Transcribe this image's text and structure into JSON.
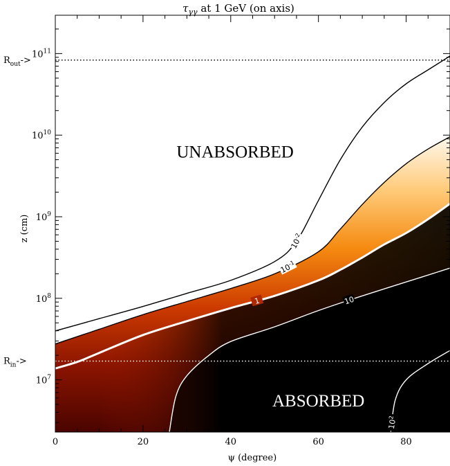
{
  "chart_data": {
    "type": "contour",
    "title": "τγγ at 1 GeV (on axis)",
    "xlabel": "ψ (degree)",
    "ylabel": "z (cm)",
    "xlim": [
      0,
      90
    ],
    "ylim_log10": [
      6.36,
      11.47
    ],
    "y_scale": "log",
    "x_ticks": [
      0,
      20,
      40,
      60,
      80
    ],
    "y_ticks": [
      {
        "exp": 7,
        "label": "10",
        "sup": "7"
      },
      {
        "exp": 8,
        "label": "10",
        "sup": "8"
      },
      {
        "exp": 9,
        "label": "10",
        "sup": "9"
      },
      {
        "exp": 10,
        "label": "10",
        "sup": "10"
      },
      {
        "exp": 11,
        "label": "10",
        "sup": "11"
      }
    ],
    "reference_lines": [
      {
        "name": "R_out",
        "label": "R",
        "sub": "out",
        "suffix": "->",
        "log10z": 10.92
      },
      {
        "name": "R_in",
        "label": "R",
        "sub": "in",
        "suffix": "->",
        "log10z": 7.23
      }
    ],
    "regions": [
      {
        "text": "UNABSORBED",
        "x": 41,
        "log10z": 9.8
      },
      {
        "text": "ABSORBED",
        "x": 60,
        "log10z": 6.75
      }
    ],
    "contours": [
      {
        "level": "0.01",
        "label": "10",
        "sup": "-2",
        "color": "#000000",
        "points": [
          [
            0,
            7.6
          ],
          [
            10,
            7.75
          ],
          [
            20,
            7.9
          ],
          [
            30,
            8.06
          ],
          [
            40,
            8.22
          ],
          [
            50,
            8.45
          ],
          [
            55,
            8.7
          ],
          [
            60,
            9.2
          ],
          [
            65,
            9.7
          ],
          [
            70,
            10.1
          ],
          [
            75,
            10.4
          ],
          [
            80,
            10.63
          ],
          [
            85,
            10.8
          ],
          [
            90,
            10.97
          ]
        ],
        "label_x": 55
      },
      {
        "level": "0.1",
        "label": "10",
        "sup": "-1",
        "color": "#000000",
        "points": [
          [
            0,
            7.44
          ],
          [
            10,
            7.62
          ],
          [
            20,
            7.8
          ],
          [
            30,
            7.96
          ],
          [
            40,
            8.12
          ],
          [
            50,
            8.3
          ],
          [
            60,
            8.57
          ],
          [
            65,
            8.85
          ],
          [
            70,
            9.15
          ],
          [
            75,
            9.42
          ],
          [
            80,
            9.65
          ],
          [
            85,
            9.83
          ],
          [
            90,
            9.98
          ]
        ],
        "label_x": 53
      },
      {
        "level": "1",
        "label": "1",
        "sup": "",
        "color": "#ffffff",
        "points": [
          [
            0,
            7.14
          ],
          [
            5,
            7.22
          ],
          [
            10,
            7.33
          ],
          [
            20,
            7.55
          ],
          [
            30,
            7.72
          ],
          [
            40,
            7.88
          ],
          [
            50,
            8.03
          ],
          [
            60,
            8.22
          ],
          [
            65,
            8.35
          ],
          [
            70,
            8.5
          ],
          [
            75,
            8.66
          ],
          [
            80,
            8.8
          ],
          [
            85,
            8.97
          ],
          [
            90,
            9.16
          ]
        ],
        "label_x": 46
      },
      {
        "level": "10",
        "label": "10",
        "sup": "",
        "color": "#ffffff",
        "points": [
          [
            26,
            6.36
          ],
          [
            27.5,
            6.8
          ],
          [
            30,
            7.05
          ],
          [
            35,
            7.3
          ],
          [
            40,
            7.47
          ],
          [
            50,
            7.65
          ],
          [
            60,
            7.85
          ],
          [
            70,
            8.03
          ],
          [
            80,
            8.2
          ],
          [
            90,
            8.37
          ]
        ],
        "label_x": 67
      },
      {
        "level": "100",
        "label": "10",
        "sup": "2",
        "color": "#ffffff",
        "points": [
          [
            76.5,
            6.36
          ],
          [
            77.5,
            6.75
          ],
          [
            80,
            7.0
          ],
          [
            85,
            7.2
          ],
          [
            90,
            7.36
          ]
        ],
        "label_x": 76.8
      }
    ],
    "colormap": {
      "low": "#ffffff",
      "stops": [
        "#fff4e0",
        "#ffc870",
        "#f08a10",
        "#c83400",
        "#7a0e00",
        "#1a0000",
        "#000000"
      ],
      "high": "#000000"
    },
    "grid": false,
    "legend": "none"
  }
}
